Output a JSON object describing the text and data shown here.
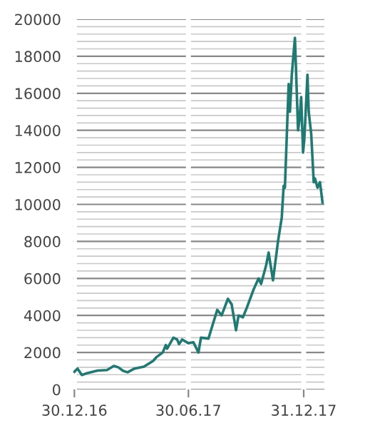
{
  "chart_data": {
    "type": "line",
    "color": "#1f7a74",
    "x": [
      "2016-12-30",
      "2017-01-04",
      "2017-01-11",
      "2017-01-20",
      "2017-02-05",
      "2017-02-20",
      "2017-03-03",
      "2017-03-10",
      "2017-03-18",
      "2017-03-25",
      "2017-04-05",
      "2017-04-20",
      "2017-05-05",
      "2017-05-10",
      "2017-05-20",
      "2017-05-25",
      "2017-05-27",
      "2017-06-06",
      "2017-06-12",
      "2017-06-15",
      "2017-06-20",
      "2017-06-30",
      "2017-07-08",
      "2017-07-16",
      "2017-07-20",
      "2017-08-01",
      "2017-08-05",
      "2017-08-15",
      "2017-08-22",
      "2017-09-01",
      "2017-09-07",
      "2017-09-14",
      "2017-09-18",
      "2017-09-25",
      "2017-10-01",
      "2017-10-12",
      "2017-10-20",
      "2017-10-24",
      "2017-11-01",
      "2017-11-05",
      "2017-11-12",
      "2017-11-20",
      "2017-11-26",
      "2017-11-29",
      "2017-12-01",
      "2017-12-07",
      "2017-12-09",
      "2017-12-12",
      "2017-12-17",
      "2017-12-22",
      "2017-12-24",
      "2017-12-27",
      "2017-12-30",
      "2018-01-01",
      "2018-01-06",
      "2018-01-08",
      "2018-01-12",
      "2018-01-16",
      "2018-01-18",
      "2018-01-22",
      "2018-01-26",
      "2018-01-30"
    ],
    "values": [
      960,
      1130,
      780,
      890,
      1020,
      1050,
      1270,
      1200,
      1000,
      930,
      1130,
      1230,
      1550,
      1750,
      2000,
      2400,
      2200,
      2800,
      2700,
      2450,
      2700,
      2500,
      2550,
      2000,
      2800,
      2750,
      3200,
      4300,
      4000,
      4900,
      4600,
      3200,
      4000,
      3900,
      4400,
      5400,
      6000,
      5700,
      6700,
      7400,
      5900,
      8000,
      9300,
      11000,
      10900,
      16500,
      15000,
      17000,
      19000,
      14000,
      14500,
      15800,
      12800,
      13500,
      17000,
      15000,
      13800,
      11200,
      11400,
      10900,
      11200,
      10100
    ],
    "xlim": [
      "2016-12-28",
      "2018-02-02"
    ],
    "xticks": [
      {
        "value": "2016-12-30",
        "label": "30.12.16"
      },
      {
        "value": "2017-06-30",
        "label": "30.06.17"
      },
      {
        "value": "2017-12-31",
        "label": "31.12.17"
      }
    ],
    "ylim": [
      0,
      20000
    ],
    "yticks": [
      0,
      {
        "value": 400,
        "label": null
      },
      {
        "value": 800,
        "label": null
      },
      {
        "value": 1200,
        "label": null
      },
      {
        "value": 1600,
        "label": null
      },
      2000,
      {
        "value": 2400,
        "label": null
      },
      {
        "value": 2800,
        "label": null
      },
      {
        "value": 3200,
        "label": null
      },
      {
        "value": 3600,
        "label": null
      },
      4000,
      {
        "value": 4400,
        "label": null
      },
      {
        "value": 4800,
        "label": null
      },
      {
        "value": 5200,
        "label": null
      },
      {
        "value": 5600,
        "label": null
      },
      6000,
      {
        "value": 6400,
        "label": null
      },
      {
        "value": 6800,
        "label": null
      },
      {
        "value": 7200,
        "label": null
      },
      {
        "value": 7600,
        "label": null
      },
      8000,
      {
        "value": 8400,
        "label": null
      },
      {
        "value": 8800,
        "label": null
      },
      {
        "value": 9200,
        "label": null
      },
      {
        "value": 9600,
        "label": null
      },
      10000,
      {
        "value": 10400,
        "label": null
      },
      {
        "value": 10800,
        "label": null
      },
      {
        "value": 11200,
        "label": null
      },
      {
        "value": 11600,
        "label": null
      },
      12000,
      {
        "value": 12400,
        "label": null
      },
      {
        "value": 12800,
        "label": null
      },
      {
        "value": 13200,
        "label": null
      },
      {
        "value": 13600,
        "label": null
      },
      14000,
      {
        "value": 14400,
        "label": null
      },
      {
        "value": 14800,
        "label": null
      },
      {
        "value": 15200,
        "label": null
      },
      {
        "value": 15600,
        "label": null
      },
      16000,
      {
        "value": 16400,
        "label": null
      },
      {
        "value": 16800,
        "label": null
      },
      {
        "value": 17200,
        "label": null
      },
      {
        "value": 17600,
        "label": null
      },
      18000,
      {
        "value": 18400,
        "label": null
      },
      {
        "value": 18800,
        "label": null
      },
      {
        "value": 19200,
        "label": null
      },
      {
        "value": 19600,
        "label": null
      },
      20000
    ],
    "grid": true
  }
}
